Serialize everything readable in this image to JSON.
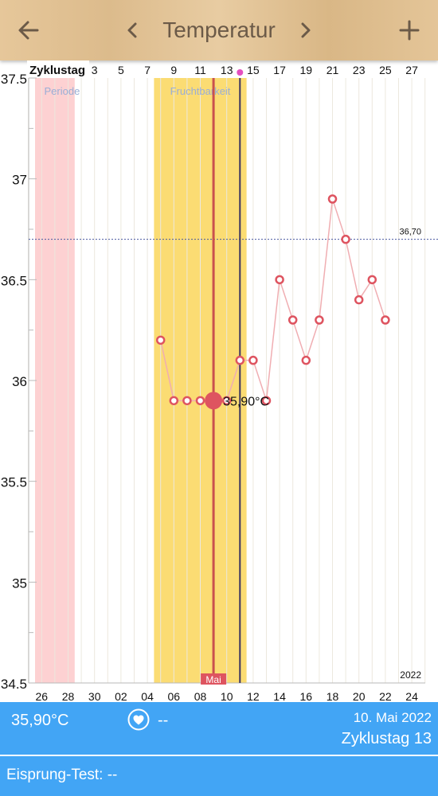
{
  "header": {
    "title": "Temperatur",
    "back_icon": "arrow-left-icon",
    "prev_icon": "chevron-left-icon",
    "next_icon": "chevron-right-icon",
    "add_icon": "plus-icon",
    "text_color": "#6b5a48"
  },
  "chart_data": {
    "type": "line",
    "ylim": [
      34.5,
      37.5
    ],
    "yticks": [
      34.5,
      35,
      35.5,
      36,
      36.5,
      37,
      37.5
    ],
    "ytick_labels": [
      "34.5",
      "35",
      "35.5",
      "36",
      "36.5",
      "37",
      "37.5"
    ],
    "top_axis_label": "Zyklustag",
    "top_ticks": [
      "3",
      "5",
      "7",
      "9",
      "11",
      "13",
      "15",
      "17",
      "19",
      "21",
      "23",
      "25",
      "27"
    ],
    "bottom_ticks": [
      "26",
      "28",
      "30",
      "02",
      "04",
      "06",
      "08",
      "10",
      "12",
      "14",
      "16",
      "18",
      "20",
      "22",
      "24"
    ],
    "month_label": "Mai",
    "year_label": "2022",
    "threshold": {
      "value": 36.7,
      "label": "36,70"
    },
    "period_band": {
      "label": "Periode",
      "from_day": -0.5,
      "to_day": 2.5
    },
    "fertile_band": {
      "label": "Fruchtbarkeit",
      "from_day": 8.5,
      "to_day": 15.5
    },
    "selected": {
      "day": 13,
      "value": 35.9,
      "label": "35,90°C"
    },
    "ovulation_day": 15,
    "series": [
      {
        "x": [
          9,
          10,
          11,
          12,
          13,
          14,
          15,
          16,
          17,
          18,
          19,
          20,
          21,
          22,
          23,
          24,
          25,
          26,
          27,
          28
        ],
        "values": [
          36.2,
          35.9,
          35.9,
          35.9,
          35.9,
          35.9,
          36.1,
          36.1,
          35.9,
          36.5,
          36.3,
          36.1,
          36.3,
          36.9,
          36.7,
          36.4,
          36.5,
          36.3,
          null,
          null
        ]
      }
    ],
    "colors": {
      "period": "#fdd1d2",
      "fertile": "#fbdc73",
      "line": "#f0aeb2",
      "marker": "#de5460",
      "selected_line": "#c9504e",
      "ovulation_line": "#3b3560",
      "threshold_line": "#4a58a0",
      "grid": "#ece8de"
    }
  },
  "footer": {
    "temperature": "35,90°C",
    "lh_value": "--",
    "heart_icon": "heart-icon",
    "date": "10. Mai 2022",
    "cycle_day": "Zyklustag 13",
    "ovulation_test": "Eisprung-Test: --",
    "background": "#42a5f5"
  }
}
